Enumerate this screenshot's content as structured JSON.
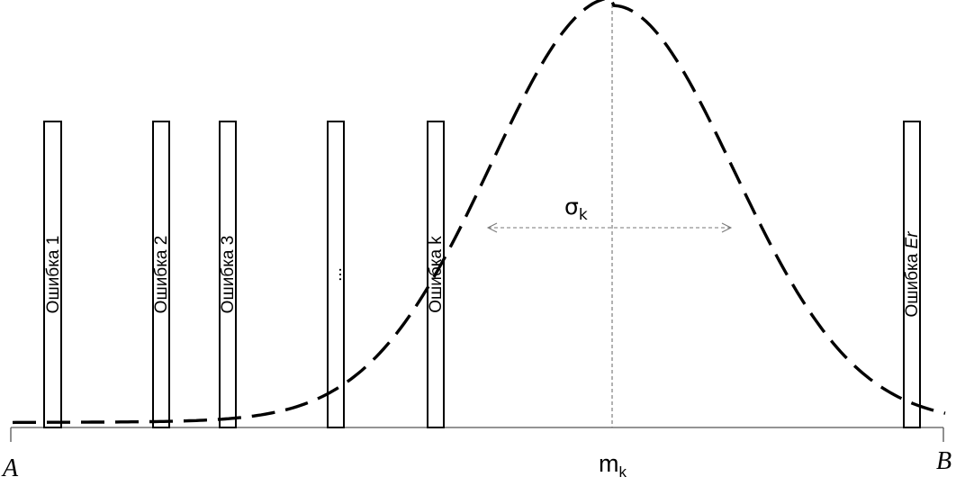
{
  "errors": [
    {
      "label": "Ошибка 1",
      "italic_suffix": ""
    },
    {
      "label": "Ошибка 2",
      "italic_suffix": ""
    },
    {
      "label": "Ошибка 3",
      "italic_suffix": ""
    },
    {
      "label": "...",
      "italic_suffix": ""
    },
    {
      "label": "Ошибка k",
      "italic_suffix": ""
    },
    {
      "label": "Ошибка ",
      "italic_suffix": "Er"
    }
  ],
  "axis": {
    "left_label": "A",
    "right_label": "B"
  },
  "mean": {
    "symbol": "m",
    "subscript": "k"
  },
  "sigma": {
    "symbol": "σ",
    "subscript": "k"
  }
}
